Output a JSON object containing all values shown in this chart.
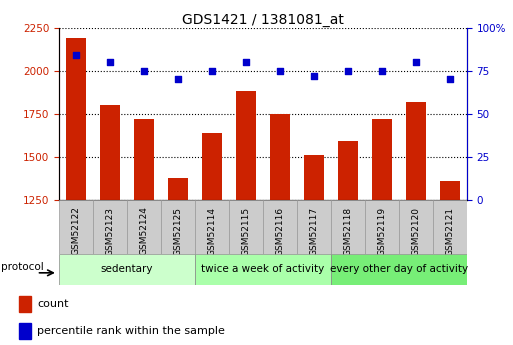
{
  "title": "GDS1421 / 1381081_at",
  "categories": [
    "GSM52122",
    "GSM52123",
    "GSM52124",
    "GSM52125",
    "GSM52114",
    "GSM52115",
    "GSM52116",
    "GSM52117",
    "GSM52118",
    "GSM52119",
    "GSM52120",
    "GSM52121"
  ],
  "count_values": [
    2190,
    1800,
    1720,
    1380,
    1640,
    1880,
    1750,
    1510,
    1590,
    1720,
    1820,
    1360
  ],
  "percentile_values": [
    84,
    80,
    75,
    70,
    75,
    80,
    75,
    72,
    75,
    75,
    80,
    70
  ],
  "ylim_left": [
    1250,
    2250
  ],
  "ylim_right": [
    0,
    100
  ],
  "yticks_left": [
    1250,
    1500,
    1750,
    2000,
    2250
  ],
  "yticks_right": [
    0,
    25,
    50,
    75,
    100
  ],
  "groups": [
    {
      "label": "sedentary",
      "start": 0,
      "end": 4,
      "color": "#ccffcc"
    },
    {
      "label": "twice a week of activity",
      "start": 4,
      "end": 8,
      "color": "#aaffaa"
    },
    {
      "label": "every other day of activity",
      "start": 8,
      "end": 12,
      "color": "#77ee77"
    }
  ],
  "bar_color": "#cc2200",
  "dot_color": "#0000cc",
  "grid_color": "#000000",
  "tick_label_color_left": "#cc2200",
  "tick_label_color_right": "#0000cc",
  "protocol_label": "protocol",
  "legend_count_label": "count",
  "legend_percentile_label": "percentile rank within the sample",
  "xtick_bg_color": "#cccccc"
}
